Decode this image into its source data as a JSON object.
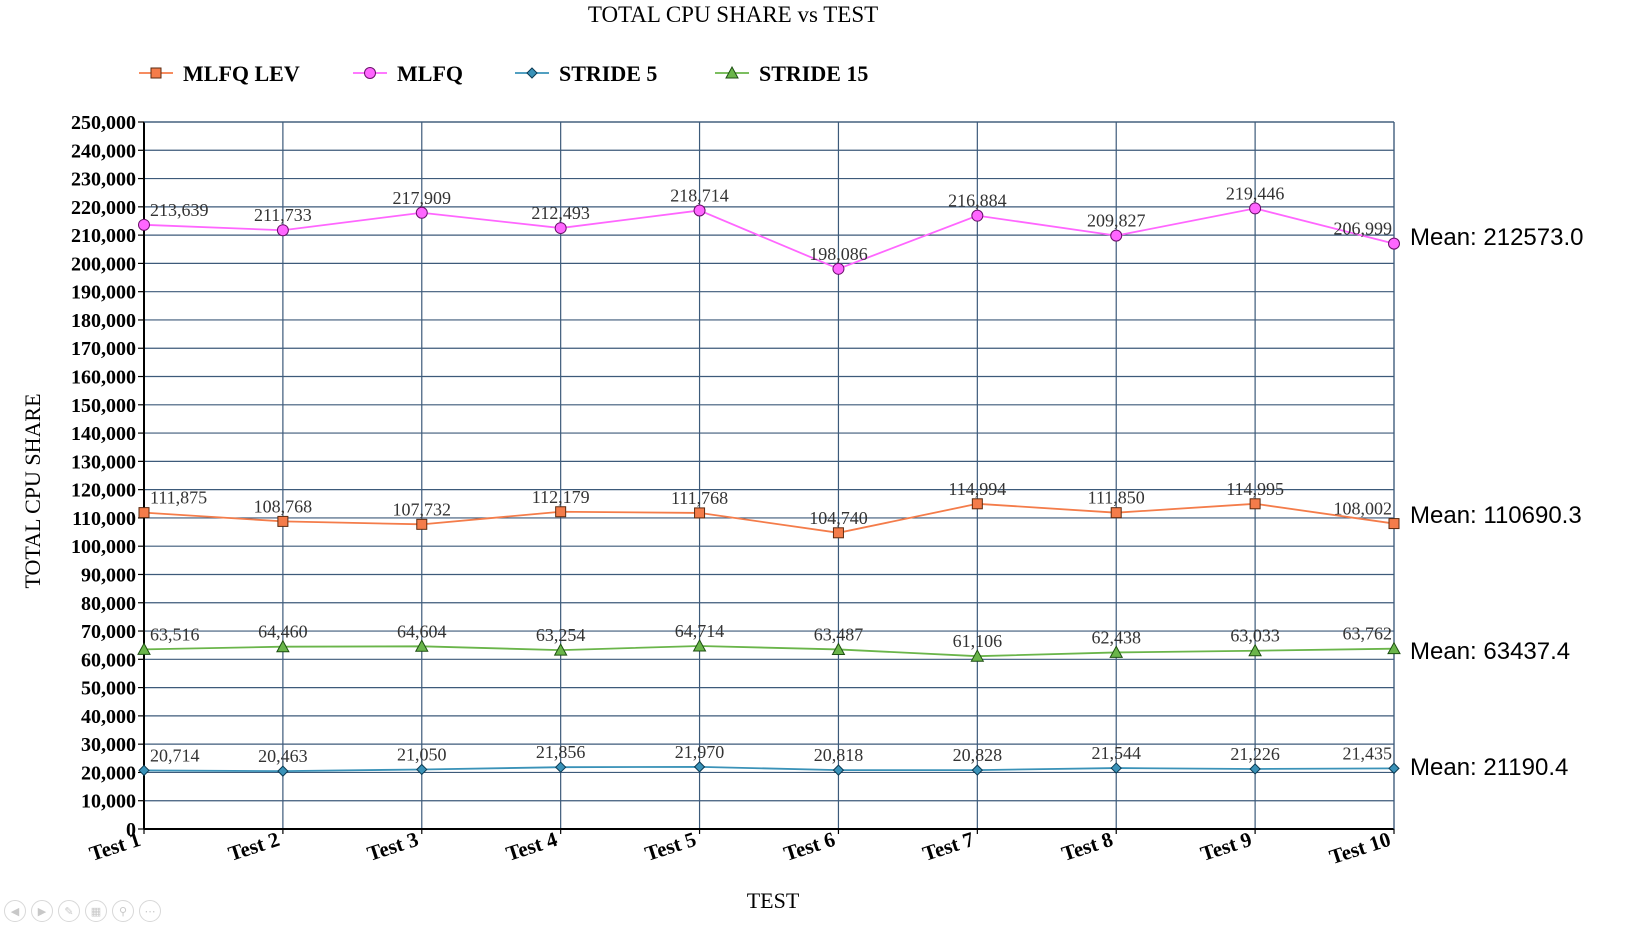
{
  "chart_data": {
    "type": "line",
    "title": "TOTAL CPU SHARE vs TEST",
    "xlabel": "TEST",
    "ylabel": "TOTAL CPU SHARE",
    "ylim": [
      0,
      250000
    ],
    "ytick_step": 10000,
    "grid": true,
    "legend_position": "top-left",
    "categories": [
      "Test 1",
      "Test 2",
      "Test 3",
      "Test 4",
      "Test 5",
      "Test 6",
      "Test 7",
      "Test 8",
      "Test 9",
      "Test 10"
    ],
    "series": [
      {
        "name": "MLFQ LEV",
        "color": "#f47c4a",
        "marker": "square",
        "values": [
          111875,
          108768,
          107732,
          112179,
          111768,
          104740,
          114994,
          111850,
          114995,
          108002
        ]
      },
      {
        "name": "MLFQ",
        "color": "#ff66ff",
        "marker": "circle",
        "values": [
          213639,
          211733,
          217909,
          212493,
          218714,
          198086,
          216884,
          209827,
          219446,
          206999
        ]
      },
      {
        "name": "STRIDE 5",
        "color": "#3a92b8",
        "marker": "diamond",
        "values": [
          20714,
          20463,
          21050,
          21856,
          21970,
          20818,
          20828,
          21544,
          21226,
          21435
        ]
      },
      {
        "name": "STRIDE 15",
        "color": "#6ab54a",
        "marker": "triangle",
        "values": [
          63516,
          64460,
          64604,
          63254,
          64714,
          63487,
          61106,
          62438,
          63033,
          63762
        ]
      }
    ]
  },
  "means": [
    {
      "series": "MLFQ",
      "text": "Mean: 212573.0"
    },
    {
      "series": "MLFQ LEV",
      "text": "Mean: 110690.3"
    },
    {
      "series": "STRIDE 15",
      "text": "Mean: 63437.4"
    },
    {
      "series": "STRIDE 5",
      "text": "Mean: 21190.4"
    }
  ],
  "colors": {
    "grid": "#3d5a7a",
    "axis": "#000000"
  },
  "slide_controls": [
    "prev-icon",
    "next-icon",
    "pen-icon",
    "slides-icon",
    "zoom-icon",
    "more-icon"
  ]
}
